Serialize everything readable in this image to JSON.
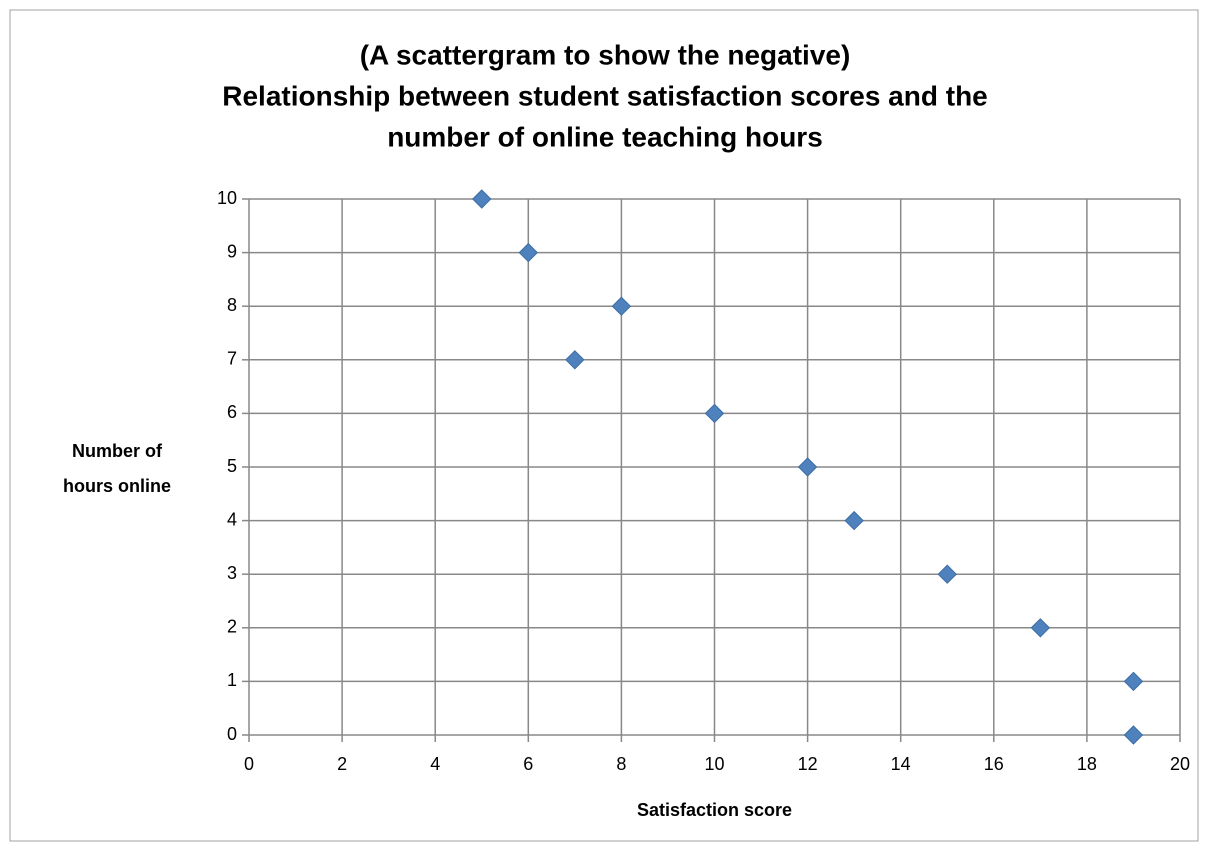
{
  "chart_data": {
    "type": "scatter",
    "title": [
      "(A scattergram to show the negative)",
      "Relationship between student satisfaction scores and the",
      "number of online teaching hours"
    ],
    "x_label": "Satisfaction score",
    "y_label": [
      "Number of",
      "hours online"
    ],
    "series": [
      {
        "color": "#4f81bd",
        "x": [
          5,
          6,
          7,
          8,
          10,
          12,
          13,
          15,
          17,
          19,
          19
        ],
        "values": [
          10,
          9,
          7,
          8,
          6,
          5,
          4,
          3,
          2,
          1,
          0
        ]
      }
    ],
    "xlim": [
      0,
      20
    ],
    "xticks": [
      0,
      2,
      4,
      6,
      8,
      10,
      12,
      14,
      16,
      18,
      20
    ],
    "ylim": [
      0,
      10
    ],
    "yticks": [
      0,
      1,
      2,
      3,
      4,
      5,
      6,
      7,
      8,
      9,
      10
    ],
    "grid": true
  }
}
